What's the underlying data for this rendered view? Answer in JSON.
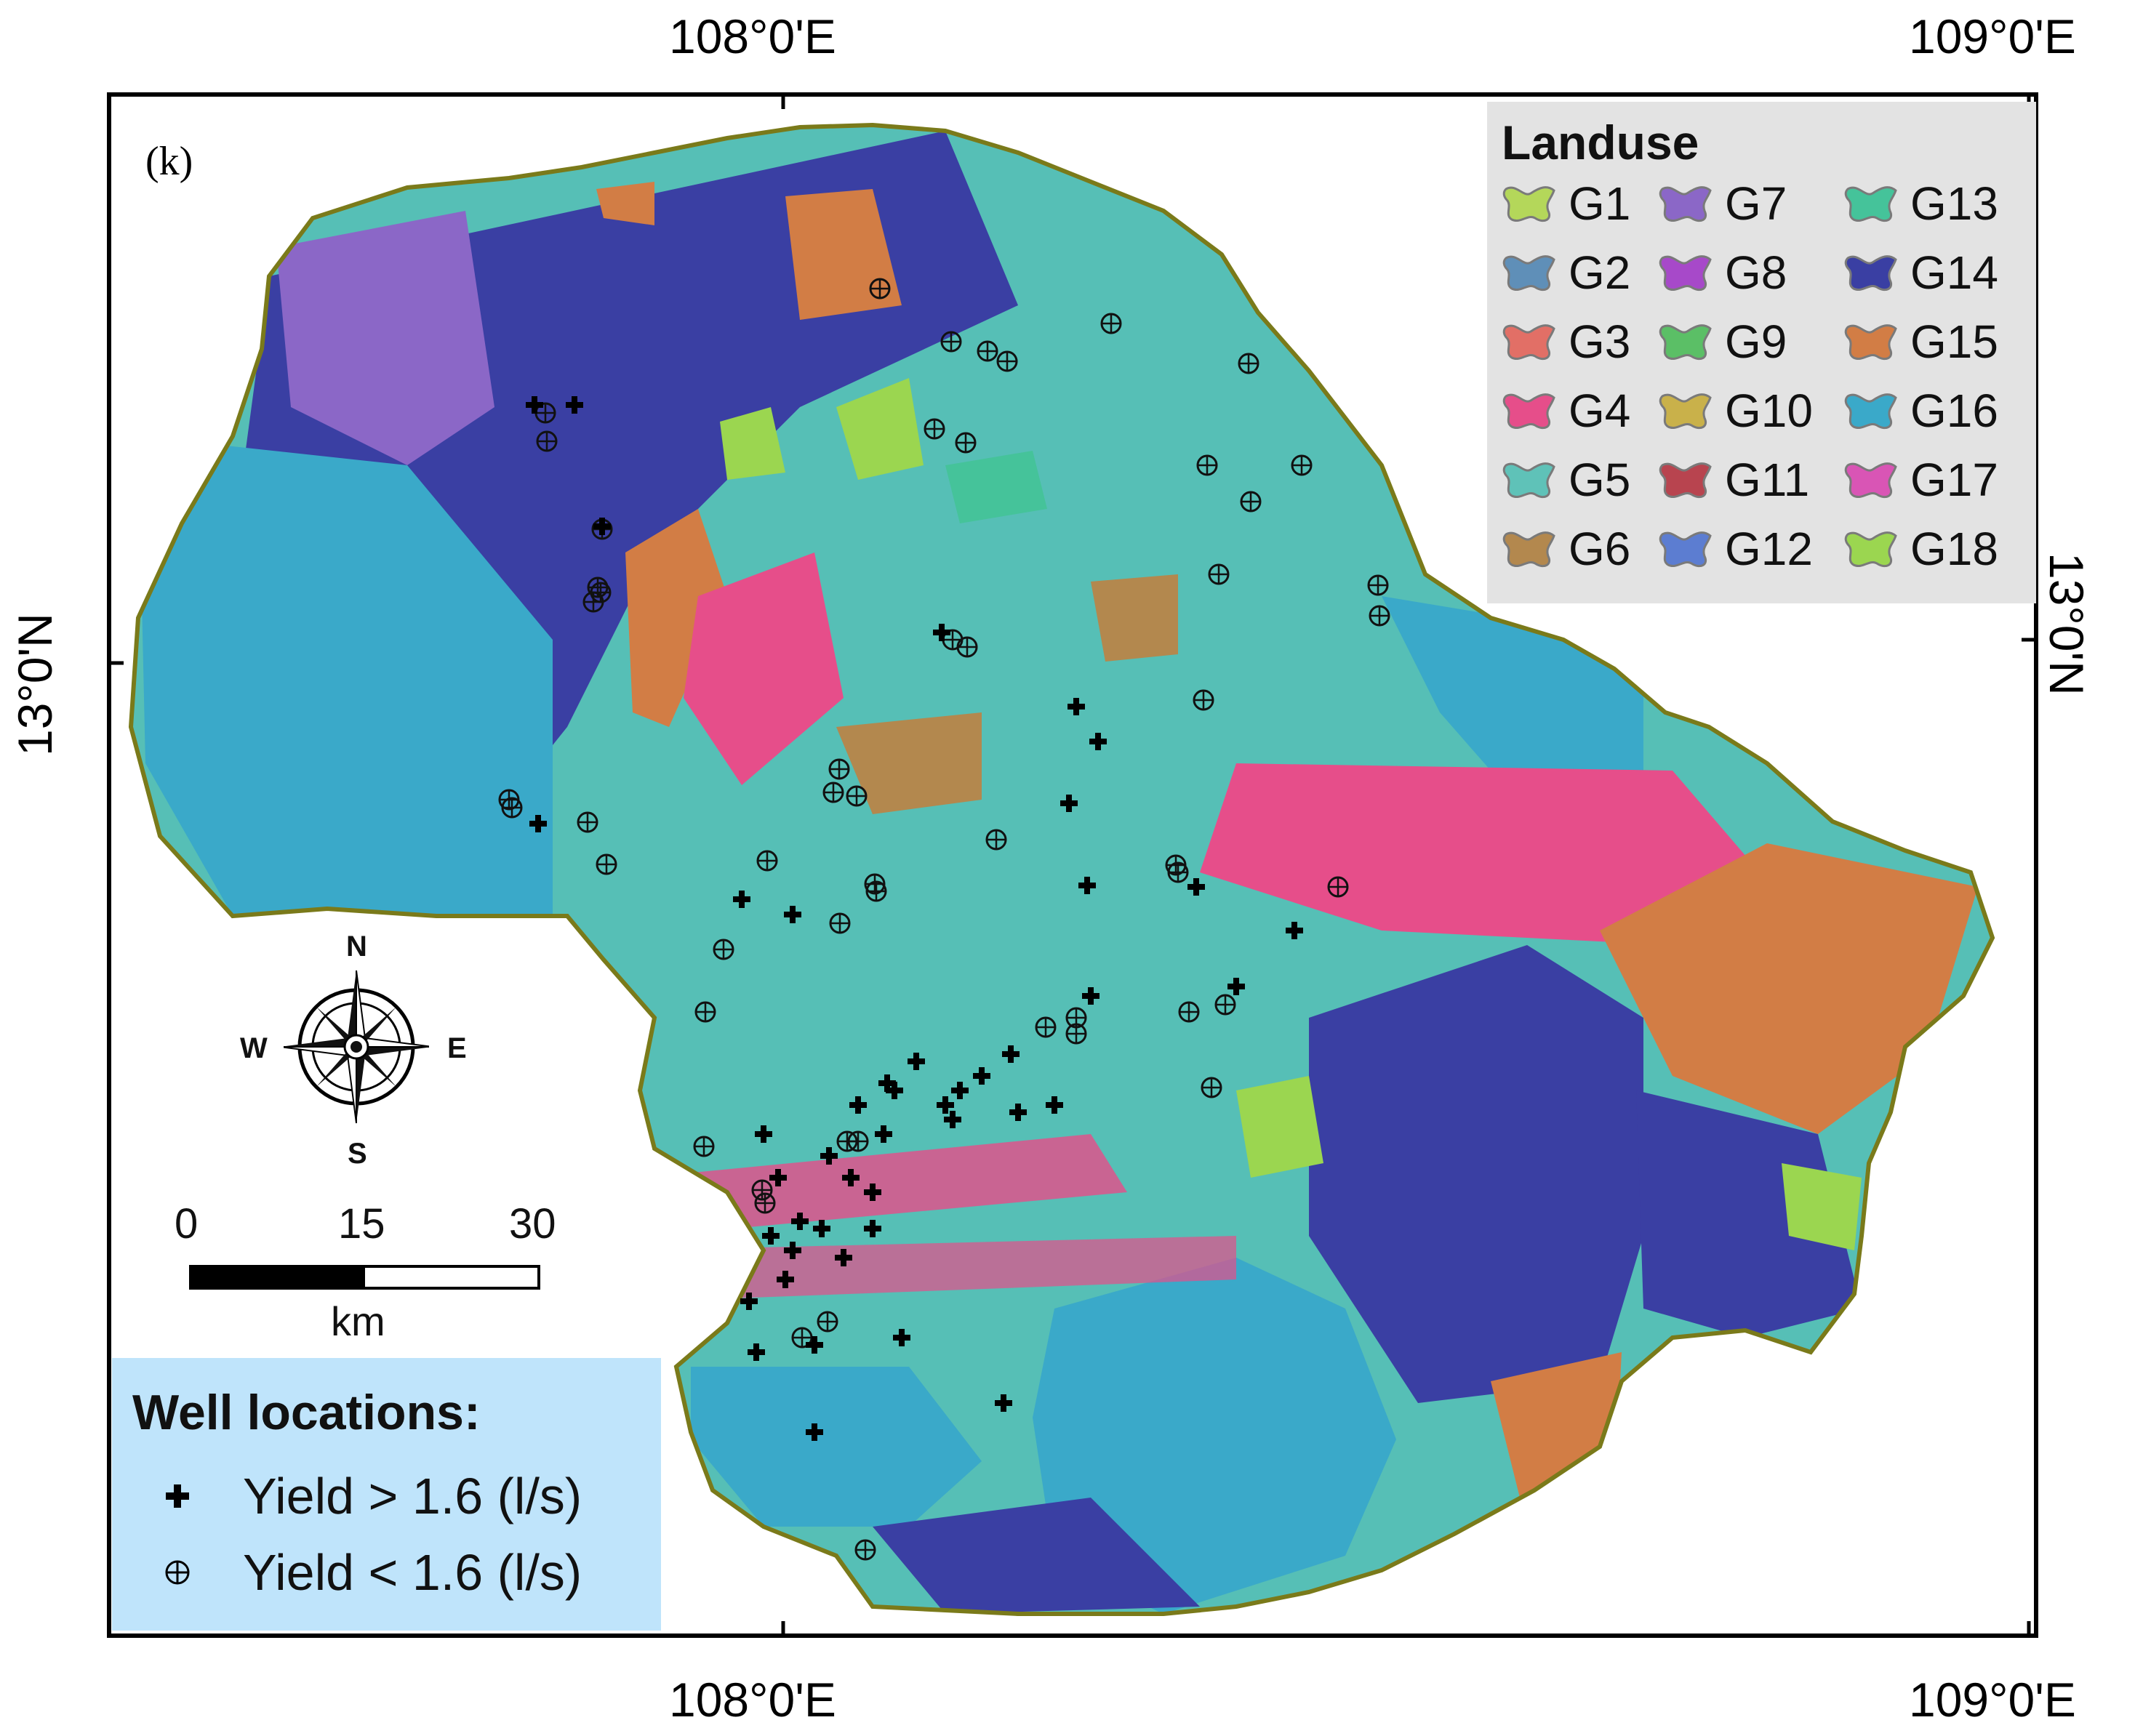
{
  "panel_label": "(k)",
  "coordinates": {
    "top_left": "108°0'E",
    "top_right": "109°0'E",
    "bottom_left": "108°0'E",
    "bottom_right": "109°0'E",
    "left": "13°0'N",
    "right": "13°0'N"
  },
  "landuse_legend": {
    "title": "Landuse",
    "items": [
      {
        "label": "G1",
        "color": "#b4d75a"
      },
      {
        "label": "G2",
        "color": "#5f8fb8"
      },
      {
        "label": "G3",
        "color": "#e26f66"
      },
      {
        "label": "G4",
        "color": "#e64e8a"
      },
      {
        "label": "G5",
        "color": "#5fc2b8"
      },
      {
        "label": "G6",
        "color": "#b3884e"
      },
      {
        "label": "G7",
        "color": "#8b67c7"
      },
      {
        "label": "G8",
        "color": "#a749c9"
      },
      {
        "label": "G9",
        "color": "#5bbf66"
      },
      {
        "label": "G10",
        "color": "#c9b14a"
      },
      {
        "label": "G11",
        "color": "#b8444f"
      },
      {
        "label": "G12",
        "color": "#5c7dd1"
      },
      {
        "label": "G13",
        "color": "#45c39a"
      },
      {
        "label": "G14",
        "color": "#3a3fa3"
      },
      {
        "label": "G15",
        "color": "#d27d45"
      },
      {
        "label": "G16",
        "color": "#3aa9c9"
      },
      {
        "label": "G17",
        "color": "#d955b5"
      },
      {
        "label": "G18",
        "color": "#9bd650"
      }
    ]
  },
  "well_legend": {
    "title": "Well locations:",
    "high_yield": "Yield > 1.6 (l/s)",
    "low_yield": "Yield < 1.6 (l/s)"
  },
  "scale_bar": {
    "ticks": [
      "0",
      "15",
      "30"
    ],
    "unit": "km"
  },
  "compass": {
    "n": "N",
    "s": "S",
    "e": "E",
    "w": "W"
  },
  "colors": {
    "boundary": "#7a7a1a",
    "frame": "#000000",
    "landuse_legend_bg": "#e3e3e3",
    "well_legend_bg": "#bfe4fb"
  }
}
